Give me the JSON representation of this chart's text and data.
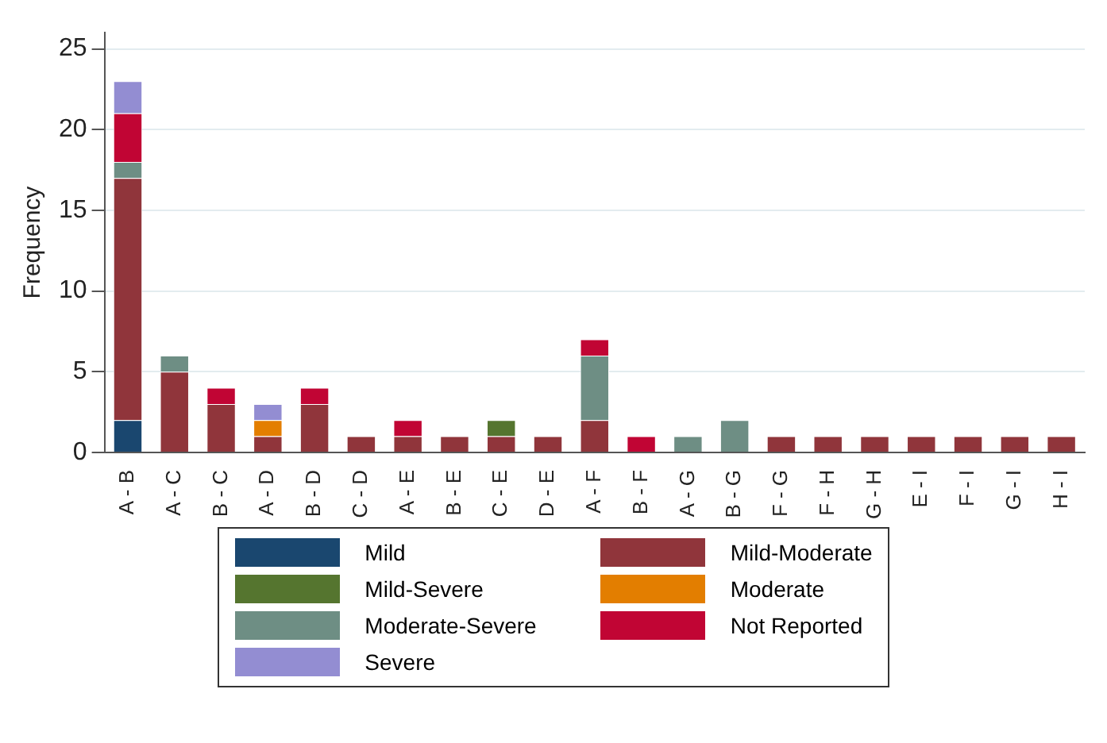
{
  "chart_data": {
    "type": "bar",
    "stacked": true,
    "ylabel": "Frequency",
    "ylim": [
      0,
      26
    ],
    "yticks": [
      0,
      5,
      10,
      15,
      20,
      25
    ],
    "grid": "y",
    "legend": "bottom",
    "categories": [
      "A - B",
      "A - C",
      "B - C",
      "A - D",
      "B - D",
      "C - D",
      "A - E",
      "B - E",
      "C - E",
      "D - E",
      "A - F",
      "B - F",
      "A - G",
      "B - G",
      "F - G",
      "F - H",
      "G - H",
      "E - I",
      "F - I",
      "G - I",
      "H - I"
    ],
    "series": [
      {
        "name": "Mild",
        "color": "#1a476f",
        "values": [
          2,
          0,
          0,
          0,
          0,
          0,
          0,
          0,
          0,
          0,
          0,
          0,
          0,
          0,
          0,
          0,
          0,
          0,
          0,
          0,
          0
        ]
      },
      {
        "name": "Mild-Moderate",
        "color": "#90353b",
        "values": [
          15,
          5,
          3,
          1,
          3,
          1,
          1,
          1,
          1,
          1,
          2,
          0,
          0,
          0,
          1,
          1,
          1,
          1,
          1,
          1,
          1
        ]
      },
      {
        "name": "Mild-Severe",
        "color": "#55752f",
        "values": [
          0,
          0,
          0,
          0,
          0,
          0,
          0,
          0,
          1,
          0,
          0,
          0,
          0,
          0,
          0,
          0,
          0,
          0,
          0,
          0,
          0
        ]
      },
      {
        "name": "Moderate",
        "color": "#e37e00",
        "values": [
          0,
          0,
          0,
          1,
          0,
          0,
          0,
          0,
          0,
          0,
          0,
          0,
          0,
          0,
          0,
          0,
          0,
          0,
          0,
          0,
          0
        ]
      },
      {
        "name": "Moderate-Severe",
        "color": "#6e8e84",
        "values": [
          1,
          1,
          0,
          0,
          0,
          0,
          0,
          0,
          0,
          0,
          4,
          0,
          1,
          2,
          0,
          0,
          0,
          0,
          0,
          0,
          0
        ]
      },
      {
        "name": "Not Reported",
        "color": "#c10534",
        "values": [
          3,
          0,
          1,
          0,
          1,
          0,
          1,
          0,
          0,
          0,
          1,
          1,
          0,
          0,
          0,
          0,
          0,
          0,
          0,
          0,
          0
        ]
      },
      {
        "name": "Severe",
        "color": "#938dd2",
        "values": [
          2,
          0,
          0,
          1,
          0,
          0,
          0,
          0,
          0,
          0,
          0,
          0,
          0,
          0,
          0,
          0,
          0,
          0,
          0,
          0,
          0
        ]
      }
    ]
  }
}
